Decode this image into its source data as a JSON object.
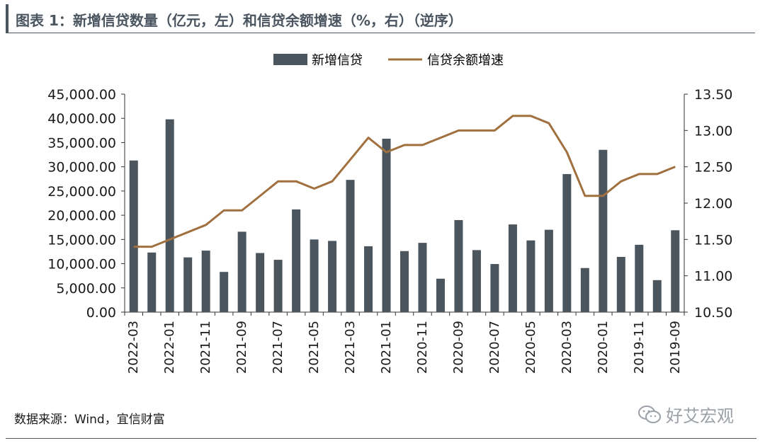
{
  "header": {
    "title": "图表 1：新增信贷数量（亿元，左）和信贷余额增速（%，右）（逆序）"
  },
  "footer": {
    "source": "数据来源：Wind，宜信财富",
    "watermark": "好艾宏观"
  },
  "colors": {
    "bar": "#4b555e",
    "line": "#a0703f",
    "title": "#4a5560"
  },
  "icons": {
    "watermark": "wechat-icon"
  },
  "chart_data": {
    "type": "bar",
    "categories": [
      "2022-03",
      "2022-02",
      "2022-01",
      "2021-12",
      "2021-11",
      "2021-10",
      "2021-09",
      "2021-08",
      "2021-07",
      "2021-06",
      "2021-05",
      "2021-04",
      "2021-03",
      "2021-02",
      "2021-01",
      "2020-12",
      "2020-11",
      "2020-10",
      "2020-09",
      "2020-08",
      "2020-07",
      "2020-06",
      "2020-05",
      "2020-04",
      "2020-03",
      "2020-02",
      "2020-01",
      "2019-12",
      "2019-11",
      "2019-10",
      "2019-09"
    ],
    "x_tick_labels": [
      "2022-03",
      "2022-01",
      "2021-11",
      "2021-09",
      "2021-07",
      "2021-05",
      "2021-03",
      "2021-01",
      "2020-11",
      "2020-09",
      "2020-07",
      "2020-05",
      "2020-03",
      "2020-01",
      "2019-11",
      "2019-09"
    ],
    "series": [
      {
        "name": "新增信贷",
        "type": "bar",
        "axis": "left",
        "values": [
          31300,
          12300,
          39800,
          11300,
          12700,
          8300,
          16600,
          12200,
          10800,
          21200,
          15000,
          14700,
          27300,
          13600,
          35800,
          12600,
          14300,
          6900,
          19000,
          12800,
          9927,
          18100,
          14800,
          17000,
          28500,
          9100,
          33500,
          11400,
          13900,
          6600,
          16900
        ]
      },
      {
        "name": "信贷余额增速",
        "type": "line",
        "axis": "right",
        "values": [
          11.4,
          11.4,
          11.5,
          11.6,
          11.7,
          11.9,
          11.9,
          12.1,
          12.3,
          12.3,
          12.2,
          12.3,
          12.6,
          12.9,
          12.7,
          12.8,
          12.8,
          12.9,
          13.0,
          13.0,
          13.0,
          13.2,
          13.2,
          13.1,
          12.7,
          12.1,
          12.1,
          12.3,
          12.4,
          12.4,
          12.5
        ]
      }
    ],
    "y_left": {
      "ylim": [
        0,
        45000
      ],
      "ticks": [
        "0.00",
        "5,000.00",
        "10,000.00",
        "15,000.00",
        "20,000.00",
        "25,000.00",
        "30,000.00",
        "35,000.00",
        "40,000.00",
        "45,000.00"
      ]
    },
    "y_right": {
      "ylim": [
        10.5,
        13.5
      ],
      "ticks": [
        "10.50",
        "11.00",
        "11.50",
        "12.00",
        "12.50",
        "13.00",
        "13.50"
      ]
    },
    "legend": "top-center",
    "grid": false
  }
}
